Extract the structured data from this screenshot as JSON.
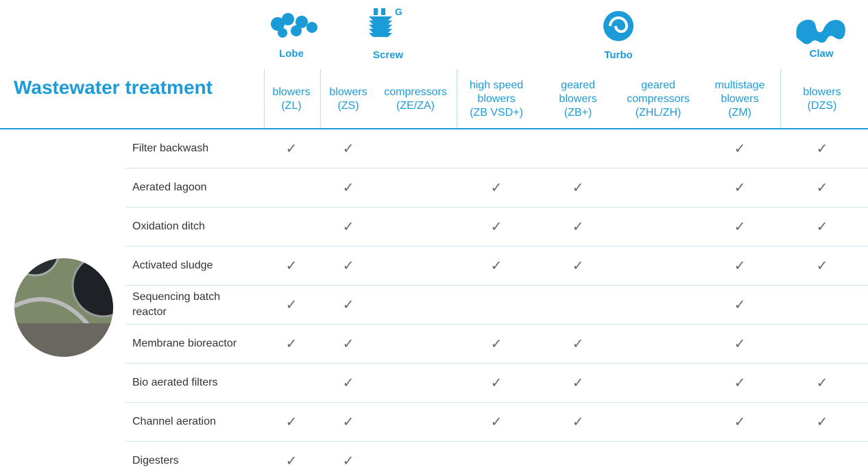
{
  "title": "Wastewater treatment",
  "groups": [
    "Lobe",
    "Screw",
    "Turbo",
    "Claw"
  ],
  "columns": [
    {
      "lines": [
        "blowers",
        "(ZL)"
      ]
    },
    {
      "lines": [
        "blowers",
        "(ZS)"
      ]
    },
    {
      "lines": [
        "compressors",
        "(ZE/ZA)"
      ]
    },
    {
      "lines": [
        "high speed",
        "blowers",
        "(ZB VSD+)"
      ]
    },
    {
      "lines": [
        "geared",
        "blowers",
        "(ZB+)"
      ]
    },
    {
      "lines": [
        "geared",
        "compressors",
        "(ZHL/ZH)"
      ]
    },
    {
      "lines": [
        "multistage",
        "blowers",
        "(ZM)"
      ]
    },
    {
      "lines": [
        "blowers",
        "(DZS)"
      ]
    }
  ],
  "rows": [
    {
      "name": "Filter backwash",
      "cells": [
        "✓",
        "✓",
        null,
        null,
        null,
        null,
        "✓",
        "✓"
      ]
    },
    {
      "name": "Aerated lagoon",
      "cells": [
        null,
        "✓",
        null,
        "✓",
        "✓",
        null,
        "✓",
        "✓"
      ]
    },
    {
      "name": "Oxidation ditch",
      "cells": [
        null,
        "✓",
        null,
        "✓",
        "✓",
        null,
        "✓",
        "✓"
      ]
    },
    {
      "name": "Activated sludge",
      "cells": [
        "✓",
        "✓",
        null,
        "✓",
        "✓",
        null,
        "✓",
        "✓"
      ]
    },
    {
      "name": "Sequencing batch reactor",
      "cells": [
        "✓",
        "✓",
        null,
        null,
        null,
        null,
        "✓",
        null
      ]
    },
    {
      "name": "Membrane bioreactor",
      "cells": [
        "✓",
        "✓",
        null,
        "✓",
        "✓",
        null,
        "✓",
        null
      ]
    },
    {
      "name": "Bio aerated filters",
      "cells": [
        null,
        "✓",
        null,
        "✓",
        "✓",
        null,
        "✓",
        "✓"
      ]
    },
    {
      "name": "Channel aeration",
      "cells": [
        "✓",
        "✓",
        null,
        "✓",
        "✓",
        null,
        "✓",
        "✓"
      ]
    },
    {
      "name": "Digesters",
      "cells": [
        "✓",
        "✓",
        null,
        null,
        null,
        null,
        null,
        null
      ]
    }
  ]
}
